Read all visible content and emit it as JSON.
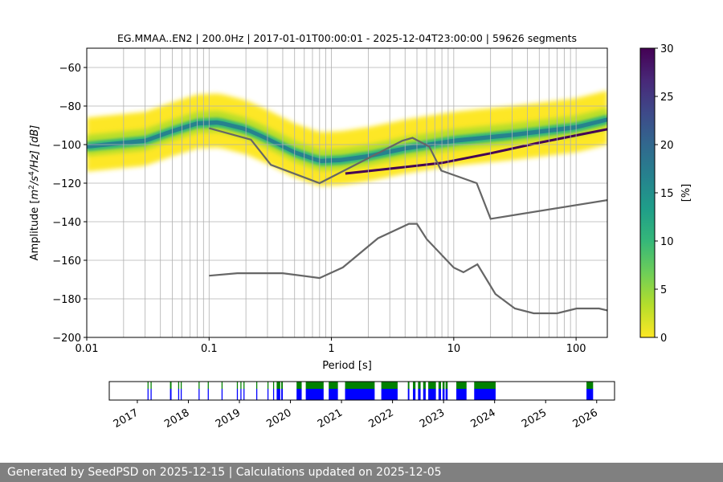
{
  "chart_data": {
    "type": "heatmap",
    "title": "EG.MMAA..EN2 | 200.0Hz | 2017-01-01T00:00:01 - 2025-12-04T23:00:00 | 59626 segments",
    "xlabel": "Period [s]",
    "ylabel": "Amplitude [m²/s⁴/Hz] [dB]",
    "ylabel_parts": {
      "pre": "Amplitude [",
      "m": "m",
      "sup2": "2",
      "mid": "/s",
      "sup4": "4",
      "post": "/Hz] [dB]"
    },
    "x_scale": "log",
    "xlim": [
      0.01,
      180
    ],
    "ylim": [
      -200,
      -50
    ],
    "x_ticks": [
      0.01,
      0.1,
      1,
      10,
      100
    ],
    "x_tick_labels": [
      "0.01",
      "0.1",
      "1",
      "10",
      "100"
    ],
    "y_ticks": [
      -200,
      -180,
      -160,
      -140,
      -120,
      -100,
      -80,
      -60
    ],
    "y_tick_labels": [
      "−200",
      "−180",
      "−160",
      "−140",
      "−120",
      "−100",
      "−80",
      "−60"
    ],
    "period_grid": [
      0.01,
      0.02,
      0.03,
      0.04,
      0.05,
      0.06,
      0.07,
      0.08,
      0.09,
      0.1,
      0.2,
      0.3,
      0.4,
      0.5,
      0.6,
      0.7,
      0.8,
      0.9,
      1,
      2,
      3,
      4,
      5,
      6,
      7,
      8,
      9,
      10,
      20,
      30,
      40,
      50,
      60,
      70,
      80,
      90,
      100
    ],
    "noise_models": [
      {
        "name": "NHNM",
        "color": "#666666",
        "points": [
          [
            0.1,
            -91.5
          ],
          [
            0.22,
            -97.4
          ],
          [
            0.32,
            -110.5
          ],
          [
            0.8,
            -120
          ],
          [
            3.8,
            -98
          ],
          [
            4.6,
            -96.5
          ],
          [
            6.3,
            -101
          ],
          [
            7.9,
            -113.5
          ],
          [
            15.4,
            -120
          ],
          [
            20,
            -138.5
          ],
          [
            180,
            -128.8
          ]
        ]
      },
      {
        "name": "NLNM",
        "color": "#666666",
        "points": [
          [
            0.1,
            -168
          ],
          [
            0.17,
            -166.7
          ],
          [
            0.4,
            -166.7
          ],
          [
            0.8,
            -169.2
          ],
          [
            1.24,
            -163.7
          ],
          [
            2.4,
            -148.6
          ],
          [
            4.3,
            -141.1
          ],
          [
            5,
            -141.1
          ],
          [
            6,
            -149
          ],
          [
            10,
            -163.8
          ],
          [
            12,
            -166.2
          ],
          [
            15.6,
            -162.1
          ],
          [
            21.9,
            -177.5
          ],
          [
            31.6,
            -185
          ],
          [
            45,
            -187.5
          ],
          [
            70,
            -187.5
          ],
          [
            101,
            -185
          ],
          [
            154,
            -185
          ],
          [
            180,
            -186
          ]
        ]
      }
    ],
    "psd_modes": [
      {
        "name": "main-mode",
        "points": [
          [
            0.01,
            -101
          ],
          [
            0.03,
            -98
          ],
          [
            0.05,
            -93
          ],
          [
            0.08,
            -89
          ],
          [
            0.12,
            -88.5
          ],
          [
            0.2,
            -92
          ],
          [
            0.3,
            -97
          ],
          [
            0.5,
            -104
          ],
          [
            0.8,
            -108.5
          ],
          [
            1.2,
            -108
          ],
          [
            2,
            -106
          ],
          [
            4,
            -102
          ],
          [
            10,
            -98
          ],
          [
            30,
            -95
          ],
          [
            100,
            -91
          ],
          [
            180,
            -87
          ]
        ]
      },
      {
        "name": "spurious-mode",
        "points": [
          [
            1.3,
            -115
          ],
          [
            3,
            -112.5
          ],
          [
            8,
            -109.5
          ],
          [
            20,
            -104.5
          ],
          [
            50,
            -99
          ],
          [
            180,
            -92
          ]
        ]
      }
    ],
    "colorbar": {
      "label": "[%]",
      "min": 0,
      "max": 30,
      "ticks": [
        0,
        5,
        10,
        15,
        20,
        25,
        30
      ],
      "tick_labels": [
        "0",
        "5",
        "10",
        "15",
        "20",
        "25",
        "30"
      ]
    },
    "colors": {
      "viridis": [
        "#440154",
        "#482878",
        "#3e4989",
        "#31688e",
        "#26828e",
        "#1f9e89",
        "#35b779",
        "#6ece58",
        "#b5de2b",
        "#fde725"
      ],
      "nm_line": "#666666",
      "grid": "#b0b0b0"
    },
    "availability": {
      "xlim": [
        2016.45,
        2026.35
      ],
      "year_ticks": [
        2017,
        2018,
        2019,
        2020,
        2021,
        2022,
        2023,
        2024,
        2025,
        2026
      ],
      "year_labels": [
        "2017",
        "2018",
        "2019",
        "2020",
        "2021",
        "2022",
        "2023",
        "2024",
        "2025",
        "2026"
      ],
      "colors": {
        "data": "#0000ff",
        "processed": "#008000"
      },
      "segments": [
        [
          2017.2,
          2017.22
        ],
        [
          2017.26,
          2017.28
        ],
        [
          2017.64,
          2017.67
        ],
        [
          2017.8,
          2017.82
        ],
        [
          2017.85,
          2017.87
        ],
        [
          2018.2,
          2018.22
        ],
        [
          2018.38,
          2018.4
        ],
        [
          2018.65,
          2018.67
        ],
        [
          2018.95,
          2018.97
        ],
        [
          2019.02,
          2019.04
        ],
        [
          2019.08,
          2019.1
        ],
        [
          2019.33,
          2019.35
        ],
        [
          2019.55,
          2019.57
        ],
        [
          2019.66,
          2019.68
        ],
        [
          2019.73,
          2019.8
        ],
        [
          2019.82,
          2019.85
        ],
        [
          2020.12,
          2020.22
        ],
        [
          2020.3,
          2020.65
        ],
        [
          2020.75,
          2020.93
        ],
        [
          2021.07,
          2021.65
        ],
        [
          2021.78,
          2022.1
        ],
        [
          2022.3,
          2022.33
        ],
        [
          2022.4,
          2022.45
        ],
        [
          2022.5,
          2022.55
        ],
        [
          2022.6,
          2022.65
        ],
        [
          2022.7,
          2022.85
        ],
        [
          2022.9,
          2022.95
        ],
        [
          2022.98,
          2023.02
        ],
        [
          2023.04,
          2023.08
        ],
        [
          2023.25,
          2023.45
        ],
        [
          2023.6,
          2024.02
        ],
        [
          2025.8,
          2025.93
        ]
      ]
    }
  },
  "footer": {
    "text": "Generated by SeedPSD on 2025-12-15 | Calculations updated on 2025-12-05"
  }
}
